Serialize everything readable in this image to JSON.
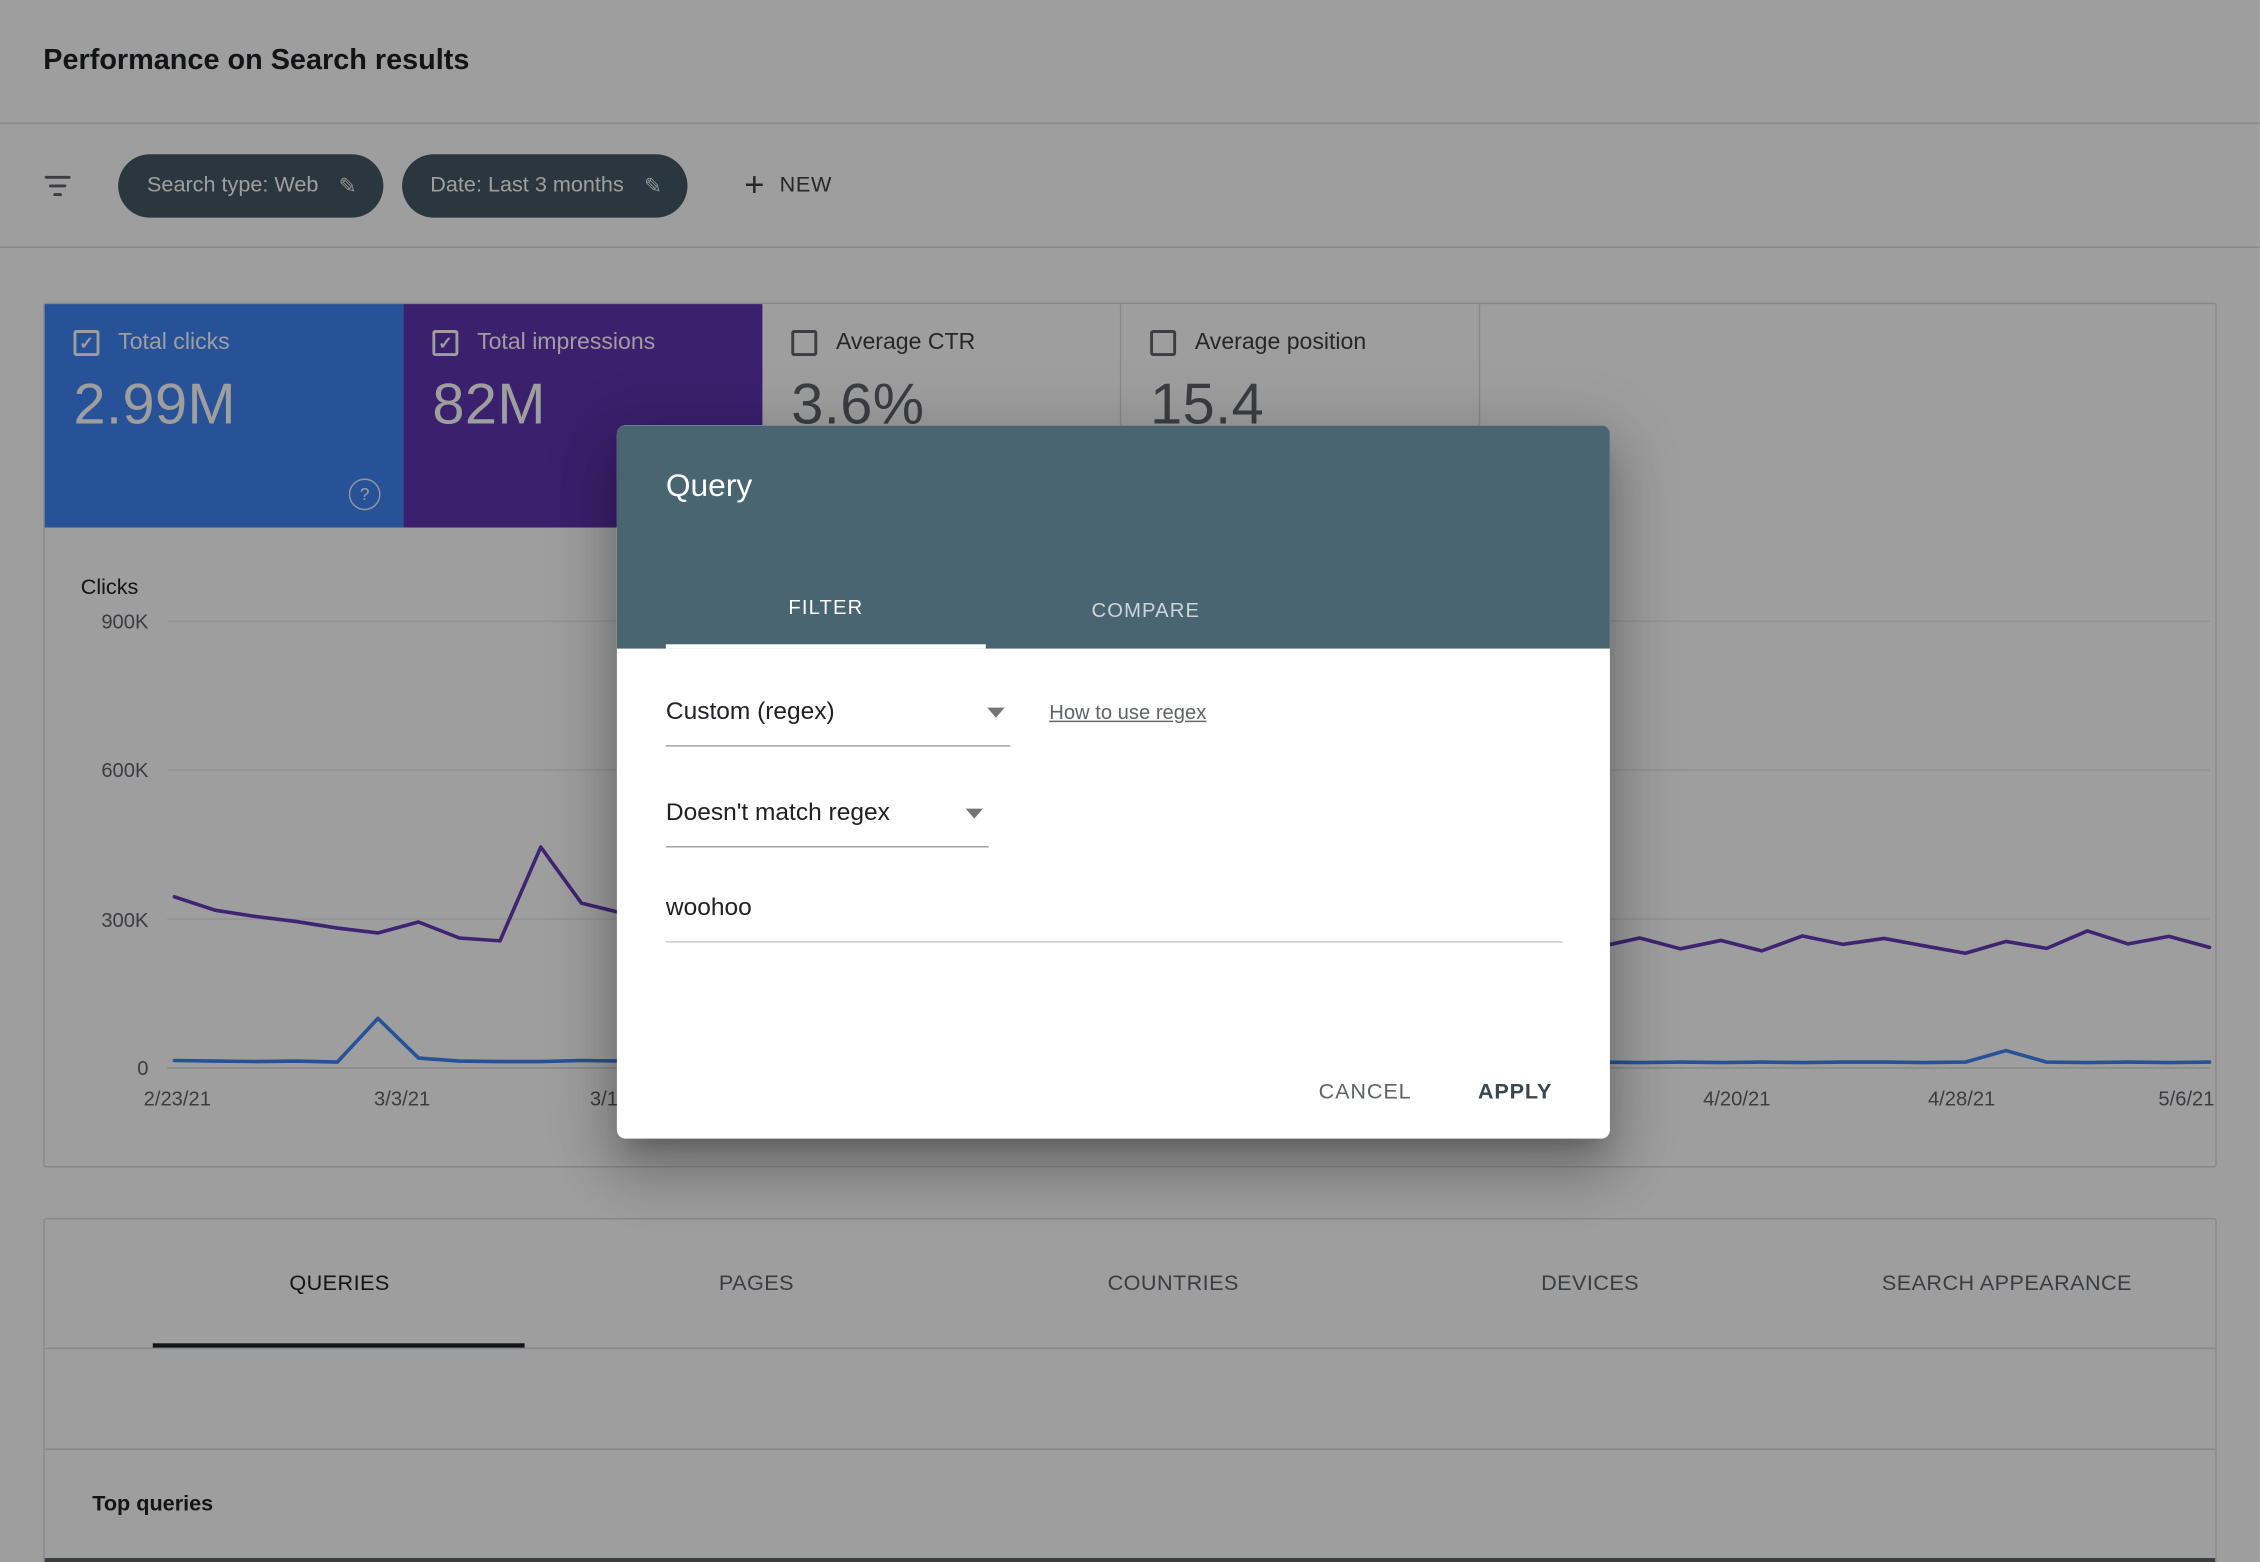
{
  "header": {
    "title": "Performance on Search results"
  },
  "filter_bar": {
    "chips": [
      {
        "label": "Search type: Web"
      },
      {
        "label": "Date: Last 3 months"
      }
    ],
    "new_label": "NEW"
  },
  "icons": {
    "check": "✓",
    "pencil": "✎",
    "plus": "+",
    "help": "?"
  },
  "colors": {
    "clicks_card": "#4285f4",
    "impressions_card": "#5e35b1",
    "clicks_line": "#4285f4",
    "impressions_line": "#673ab7",
    "modal_header": "#4a6572"
  },
  "metric_cards": [
    {
      "label": "Total clicks",
      "value": "2.99M",
      "selected": true
    },
    {
      "label": "Total impressions",
      "value": "82M",
      "selected": true
    },
    {
      "label": "Average CTR",
      "value": "3.6%",
      "selected": false
    },
    {
      "label": "Average position",
      "value": "15.4",
      "selected": false
    }
  ],
  "chart_data": {
    "type": "line",
    "y_axis_label": "Clicks",
    "y_max_k": 900,
    "y_tick_labels": [
      "900K",
      "600K",
      "300K",
      "0"
    ],
    "y_tick_values_k": [
      900,
      600,
      300,
      0
    ],
    "x_tick_labels": [
      "2/23/21",
      "3/3/21",
      "3/1",
      "4/20/21",
      "4/28/21",
      "5/6/21"
    ],
    "grid": true,
    "legend": "none",
    "series": [
      {
        "name": "Total impressions",
        "color": "#673ab7",
        "values_k": [
          345,
          318,
          305,
          295,
          282,
          272,
          294,
          262,
          256,
          445,
          332,
          312,
          300,
          292,
          286,
          280,
          284,
          276,
          281,
          271,
          266,
          276,
          262,
          272,
          268,
          258,
          264,
          256,
          262,
          250,
          258,
          248,
          255,
          246,
          252,
          244,
          262,
          240,
          257,
          236,
          266,
          249,
          261,
          246,
          231,
          255,
          241,
          276,
          250,
          265,
          243
        ]
      },
      {
        "name": "Total clicks",
        "color": "#4285f4",
        "values_k": [
          15,
          14,
          13,
          14,
          12,
          100,
          20,
          14,
          13,
          13,
          15,
          14,
          13,
          12,
          13,
          12,
          13,
          12,
          13,
          12,
          12,
          12,
          13,
          12,
          12,
          12,
          12,
          11,
          12,
          11,
          12,
          11,
          12,
          11,
          12,
          12,
          11,
          12,
          11,
          12,
          11,
          12,
          12,
          11,
          12,
          35,
          12,
          11,
          12,
          11,
          12
        ]
      }
    ]
  },
  "dimension_tabs": {
    "items": [
      {
        "label": "QUERIES",
        "active": true
      },
      {
        "label": "PAGES",
        "active": false
      },
      {
        "label": "COUNTRIES",
        "active": false
      },
      {
        "label": "DEVICES",
        "active": false
      },
      {
        "label": "SEARCH APPEARANCE",
        "active": false
      }
    ]
  },
  "table": {
    "title": "Top queries"
  },
  "modal": {
    "title": "Query",
    "tabs": [
      {
        "label": "FILTER",
        "active": true
      },
      {
        "label": "COMPARE",
        "active": false
      }
    ],
    "filter_type_value": "Custom (regex)",
    "regex_help_link": "How to use regex",
    "match_type_value": "Doesn't match regex",
    "query_value": "woohoo",
    "cancel_label": "CANCEL",
    "apply_label": "APPLY"
  }
}
